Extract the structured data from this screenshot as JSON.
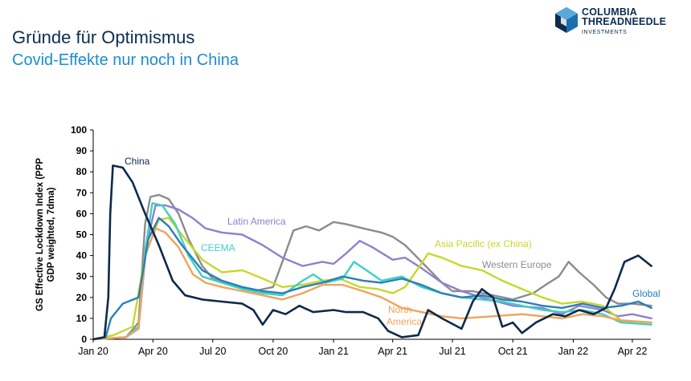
{
  "top_strip": "",
  "header": {
    "title": "Gründe für Optimismus",
    "subtitle": "Covid-Effekte nur noch in China"
  },
  "logo": {
    "line1": "COLUMBIA",
    "line2": "THREADNEEDLE",
    "line3": "INVESTMENTS"
  },
  "chart_data": {
    "type": "line",
    "title": "",
    "ylabel": "GS Effective Lockdown Index (PPP GDP weighted, 7dma)",
    "xlabel": "",
    "ylim": [
      0,
      100
    ],
    "yticks": [
      0,
      10,
      20,
      30,
      40,
      50,
      60,
      70,
      80,
      90,
      100
    ],
    "xticks": [
      {
        "label": "Jan 20",
        "x": "2020-01-01"
      },
      {
        "label": "Apr 20",
        "x": "2020-04-01"
      },
      {
        "label": "Jul 20",
        "x": "2020-07-01"
      },
      {
        "label": "Oct 20",
        "x": "2020-10-01"
      },
      {
        "label": "Jan 21",
        "x": "2021-01-01"
      },
      {
        "label": "Apr 21",
        "x": "2021-04-01"
      },
      {
        "label": "Jul 21",
        "x": "2021-07-01"
      },
      {
        "label": "Oct 21",
        "x": "2021-10-01"
      },
      {
        "label": "Jan 22",
        "x": "2022-01-01"
      },
      {
        "label": "Apr 22",
        "x": "2022-04-01"
      }
    ],
    "xlim": [
      "2020-01-01",
      "2022-04-30"
    ],
    "grid": false,
    "legend": "inline labels",
    "series": [
      {
        "name": "Western Europe",
        "color": "#8c8c8c",
        "points": [
          [
            "2020-01-01",
            0
          ],
          [
            "2020-02-20",
            1
          ],
          [
            "2020-03-10",
            8
          ],
          [
            "2020-03-20",
            55
          ],
          [
            "2020-03-28",
            68
          ],
          [
            "2020-04-10",
            69
          ],
          [
            "2020-04-25",
            67
          ],
          [
            "2020-05-10",
            60
          ],
          [
            "2020-05-25",
            48
          ],
          [
            "2020-06-15",
            35
          ],
          [
            "2020-07-01",
            29
          ],
          [
            "2020-08-01",
            26
          ],
          [
            "2020-09-01",
            23
          ],
          [
            "2020-10-01",
            25
          ],
          [
            "2020-10-15",
            37
          ],
          [
            "2020-11-01",
            52
          ],
          [
            "2020-11-20",
            54
          ],
          [
            "2020-12-10",
            52
          ],
          [
            "2021-01-01",
            56
          ],
          [
            "2021-01-20",
            55
          ],
          [
            "2021-02-15",
            53
          ],
          [
            "2021-03-15",
            51
          ],
          [
            "2021-04-01",
            49
          ],
          [
            "2021-04-20",
            45
          ],
          [
            "2021-05-15",
            37
          ],
          [
            "2021-06-15",
            27
          ],
          [
            "2021-07-01",
            23
          ],
          [
            "2021-08-01",
            23
          ],
          [
            "2021-09-01",
            21
          ],
          [
            "2021-10-01",
            19
          ],
          [
            "2021-11-01",
            22
          ],
          [
            "2021-11-20",
            26
          ],
          [
            "2021-12-10",
            30
          ],
          [
            "2021-12-25",
            37
          ],
          [
            "2022-01-10",
            32
          ],
          [
            "2022-02-01",
            26
          ],
          [
            "2022-02-20",
            20
          ],
          [
            "2022-03-10",
            17
          ],
          [
            "2022-04-01",
            17
          ],
          [
            "2022-04-30",
            16
          ]
        ]
      },
      {
        "name": "Latin America",
        "color": "#8e80d0",
        "points": [
          [
            "2020-01-01",
            0
          ],
          [
            "2020-02-20",
            1
          ],
          [
            "2020-03-10",
            5
          ],
          [
            "2020-03-22",
            45
          ],
          [
            "2020-04-05",
            64
          ],
          [
            "2020-04-20",
            64
          ],
          [
            "2020-05-10",
            62
          ],
          [
            "2020-05-31",
            58
          ],
          [
            "2020-06-20",
            53
          ],
          [
            "2020-07-15",
            51
          ],
          [
            "2020-08-15",
            50
          ],
          [
            "2020-09-15",
            45
          ],
          [
            "2020-10-15",
            39
          ],
          [
            "2020-11-15",
            35
          ],
          [
            "2020-12-15",
            37
          ],
          [
            "2021-01-01",
            36
          ],
          [
            "2021-01-20",
            41
          ],
          [
            "2021-02-10",
            47
          ],
          [
            "2021-03-01",
            44
          ],
          [
            "2021-04-01",
            38
          ],
          [
            "2021-04-20",
            39
          ],
          [
            "2021-05-15",
            34
          ],
          [
            "2021-06-15",
            27
          ],
          [
            "2021-07-15",
            23
          ],
          [
            "2021-08-15",
            20
          ],
          [
            "2021-10-01",
            16
          ],
          [
            "2021-11-15",
            15
          ],
          [
            "2021-12-15",
            12
          ],
          [
            "2022-01-10",
            16
          ],
          [
            "2022-02-15",
            14
          ],
          [
            "2022-03-10",
            11
          ],
          [
            "2022-04-01",
            12
          ],
          [
            "2022-04-30",
            10
          ]
        ]
      },
      {
        "name": "Asia Pacific (ex China)",
        "color": "#c8d72a",
        "points": [
          [
            "2020-01-01",
            0
          ],
          [
            "2020-02-01",
            2
          ],
          [
            "2020-03-01",
            6
          ],
          [
            "2020-03-20",
            40
          ],
          [
            "2020-04-10",
            57
          ],
          [
            "2020-04-25",
            58
          ],
          [
            "2020-05-15",
            50
          ],
          [
            "2020-06-15",
            38
          ],
          [
            "2020-07-15",
            32
          ],
          [
            "2020-08-15",
            33
          ],
          [
            "2020-09-15",
            29
          ],
          [
            "2020-10-15",
            25
          ],
          [
            "2020-11-15",
            26
          ],
          [
            "2020-12-15",
            28
          ],
          [
            "2021-01-10",
            29
          ],
          [
            "2021-02-10",
            25
          ],
          [
            "2021-03-10",
            24
          ],
          [
            "2021-04-01",
            22
          ],
          [
            "2021-04-20",
            25
          ],
          [
            "2021-05-10",
            34
          ],
          [
            "2021-05-25",
            41
          ],
          [
            "2021-06-15",
            39
          ],
          [
            "2021-07-15",
            35
          ],
          [
            "2021-08-15",
            33
          ],
          [
            "2021-09-15",
            28
          ],
          [
            "2021-10-15",
            24
          ],
          [
            "2021-11-15",
            20
          ],
          [
            "2021-12-15",
            17
          ],
          [
            "2022-01-15",
            18
          ],
          [
            "2022-02-15",
            16
          ],
          [
            "2022-03-15",
            9
          ],
          [
            "2022-04-30",
            8
          ]
        ]
      },
      {
        "name": "CEEMA",
        "color": "#3dd1c2",
        "points": [
          [
            "2020-01-01",
            0
          ],
          [
            "2020-02-20",
            1
          ],
          [
            "2020-03-10",
            6
          ],
          [
            "2020-03-20",
            42
          ],
          [
            "2020-03-31",
            65
          ],
          [
            "2020-04-15",
            64
          ],
          [
            "2020-05-05",
            55
          ],
          [
            "2020-05-25",
            40
          ],
          [
            "2020-06-15",
            30
          ],
          [
            "2020-07-15",
            27
          ],
          [
            "2020-08-15",
            24
          ],
          [
            "2020-09-15",
            22
          ],
          [
            "2020-10-15",
            21
          ],
          [
            "2020-11-15",
            28
          ],
          [
            "2020-12-01",
            31
          ],
          [
            "2020-12-20",
            27
          ],
          [
            "2021-01-15",
            29
          ],
          [
            "2021-02-01",
            37
          ],
          [
            "2021-02-20",
            33
          ],
          [
            "2021-03-15",
            28
          ],
          [
            "2021-04-15",
            30
          ],
          [
            "2021-05-15",
            25
          ],
          [
            "2021-06-15",
            22
          ],
          [
            "2021-07-15",
            20
          ],
          [
            "2021-08-15",
            19
          ],
          [
            "2021-09-15",
            18
          ],
          [
            "2021-10-15",
            16
          ],
          [
            "2021-11-15",
            14
          ],
          [
            "2021-12-15",
            13
          ],
          [
            "2022-01-15",
            14
          ],
          [
            "2022-02-15",
            12
          ],
          [
            "2022-03-15",
            8
          ],
          [
            "2022-04-30",
            7
          ]
        ]
      },
      {
        "name": "North America",
        "color": "#f0a35c",
        "points": [
          [
            "2020-01-01",
            0
          ],
          [
            "2020-02-20",
            1
          ],
          [
            "2020-03-10",
            5
          ],
          [
            "2020-03-20",
            40
          ],
          [
            "2020-04-05",
            53
          ],
          [
            "2020-04-20",
            51
          ],
          [
            "2020-05-10",
            44
          ],
          [
            "2020-06-01",
            31
          ],
          [
            "2020-06-20",
            27
          ],
          [
            "2020-07-15",
            25
          ],
          [
            "2020-08-15",
            23
          ],
          [
            "2020-09-15",
            21
          ],
          [
            "2020-10-15",
            19
          ],
          [
            "2020-11-15",
            22
          ],
          [
            "2020-12-15",
            26
          ],
          [
            "2021-01-15",
            26
          ],
          [
            "2021-02-15",
            23
          ],
          [
            "2021-03-15",
            20
          ],
          [
            "2021-04-15",
            15
          ],
          [
            "2021-05-15",
            13
          ],
          [
            "2021-06-15",
            11
          ],
          [
            "2021-07-15",
            10
          ],
          [
            "2021-09-01",
            11
          ],
          [
            "2021-10-15",
            12
          ],
          [
            "2021-11-15",
            11
          ],
          [
            "2021-12-15",
            10
          ],
          [
            "2022-01-15",
            12
          ],
          [
            "2022-02-15",
            11
          ],
          [
            "2022-03-15",
            9
          ],
          [
            "2022-04-30",
            8
          ]
        ]
      },
      {
        "name": "Global",
        "color": "#2a7fb8",
        "points": [
          [
            "2020-01-01",
            0
          ],
          [
            "2020-01-20",
            1
          ],
          [
            "2020-01-28",
            10
          ],
          [
            "2020-02-15",
            17
          ],
          [
            "2020-03-10",
            20
          ],
          [
            "2020-03-25",
            48
          ],
          [
            "2020-04-10",
            58
          ],
          [
            "2020-04-25",
            54
          ],
          [
            "2020-05-15",
            45
          ],
          [
            "2020-06-15",
            33
          ],
          [
            "2020-07-15",
            28
          ],
          [
            "2020-08-15",
            25
          ],
          [
            "2020-09-15",
            23
          ],
          [
            "2020-10-15",
            22
          ],
          [
            "2020-11-15",
            25
          ],
          [
            "2020-12-15",
            27
          ],
          [
            "2021-01-15",
            30
          ],
          [
            "2021-02-15",
            28
          ],
          [
            "2021-03-15",
            27
          ],
          [
            "2021-04-15",
            29
          ],
          [
            "2021-05-15",
            26
          ],
          [
            "2021-06-15",
            22
          ],
          [
            "2021-07-15",
            20
          ],
          [
            "2021-08-15",
            21
          ],
          [
            "2021-09-15",
            19
          ],
          [
            "2021-10-15",
            18
          ],
          [
            "2021-11-15",
            16
          ],
          [
            "2021-12-15",
            15
          ],
          [
            "2022-01-15",
            17
          ],
          [
            "2022-02-15",
            15
          ],
          [
            "2022-03-15",
            16
          ],
          [
            "2022-04-10",
            18
          ],
          [
            "2022-04-30",
            15
          ]
        ]
      },
      {
        "name": "China",
        "color": "#0d2a4a",
        "points": [
          [
            "2020-01-01",
            0
          ],
          [
            "2020-01-18",
            1
          ],
          [
            "2020-01-24",
            20
          ],
          [
            "2020-01-27",
            60
          ],
          [
            "2020-01-31",
            83
          ],
          [
            "2020-02-15",
            82
          ],
          [
            "2020-03-01",
            75
          ],
          [
            "2020-03-20",
            60
          ],
          [
            "2020-04-10",
            45
          ],
          [
            "2020-05-01",
            28
          ],
          [
            "2020-05-20",
            21
          ],
          [
            "2020-06-15",
            19
          ],
          [
            "2020-07-15",
            18
          ],
          [
            "2020-08-15",
            17
          ],
          [
            "2020-09-01",
            14
          ],
          [
            "2020-09-15",
            7
          ],
          [
            "2020-10-01",
            14
          ],
          [
            "2020-10-20",
            12
          ],
          [
            "2020-11-10",
            16
          ],
          [
            "2020-12-01",
            13
          ],
          [
            "2021-01-01",
            14
          ],
          [
            "2021-01-20",
            13
          ],
          [
            "2021-02-15",
            13
          ],
          [
            "2021-03-10",
            10
          ],
          [
            "2021-03-25",
            4
          ],
          [
            "2021-04-15",
            1
          ],
          [
            "2021-05-10",
            2
          ],
          [
            "2021-05-25",
            14
          ],
          [
            "2021-06-15",
            10
          ],
          [
            "2021-07-15",
            5
          ],
          [
            "2021-08-01",
            18
          ],
          [
            "2021-08-15",
            24
          ],
          [
            "2021-09-01",
            20
          ],
          [
            "2021-09-15",
            6
          ],
          [
            "2021-10-01",
            8
          ],
          [
            "2021-10-15",
            3
          ],
          [
            "2021-11-05",
            8
          ],
          [
            "2021-12-01",
            12
          ],
          [
            "2021-12-20",
            11
          ],
          [
            "2022-01-10",
            14
          ],
          [
            "2022-02-01",
            12
          ],
          [
            "2022-02-20",
            15
          ],
          [
            "2022-03-05",
            24
          ],
          [
            "2022-03-20",
            37
          ],
          [
            "2022-04-10",
            40
          ],
          [
            "2022-04-30",
            35
          ]
        ]
      }
    ],
    "labels": [
      {
        "text": "China",
        "series": "China"
      },
      {
        "text": "Latin America",
        "series": "Latin America"
      },
      {
        "text": "CEEMA",
        "series": "CEEMA"
      },
      {
        "text": "Asia Pacific (ex China)",
        "series": "Asia Pacific (ex China)"
      },
      {
        "text": "Western Europe",
        "series": "Western Europe"
      },
      {
        "text": "North",
        "series": "North America"
      },
      {
        "text": "America",
        "series": "North America"
      },
      {
        "text": "Global",
        "series": "Global"
      }
    ]
  }
}
